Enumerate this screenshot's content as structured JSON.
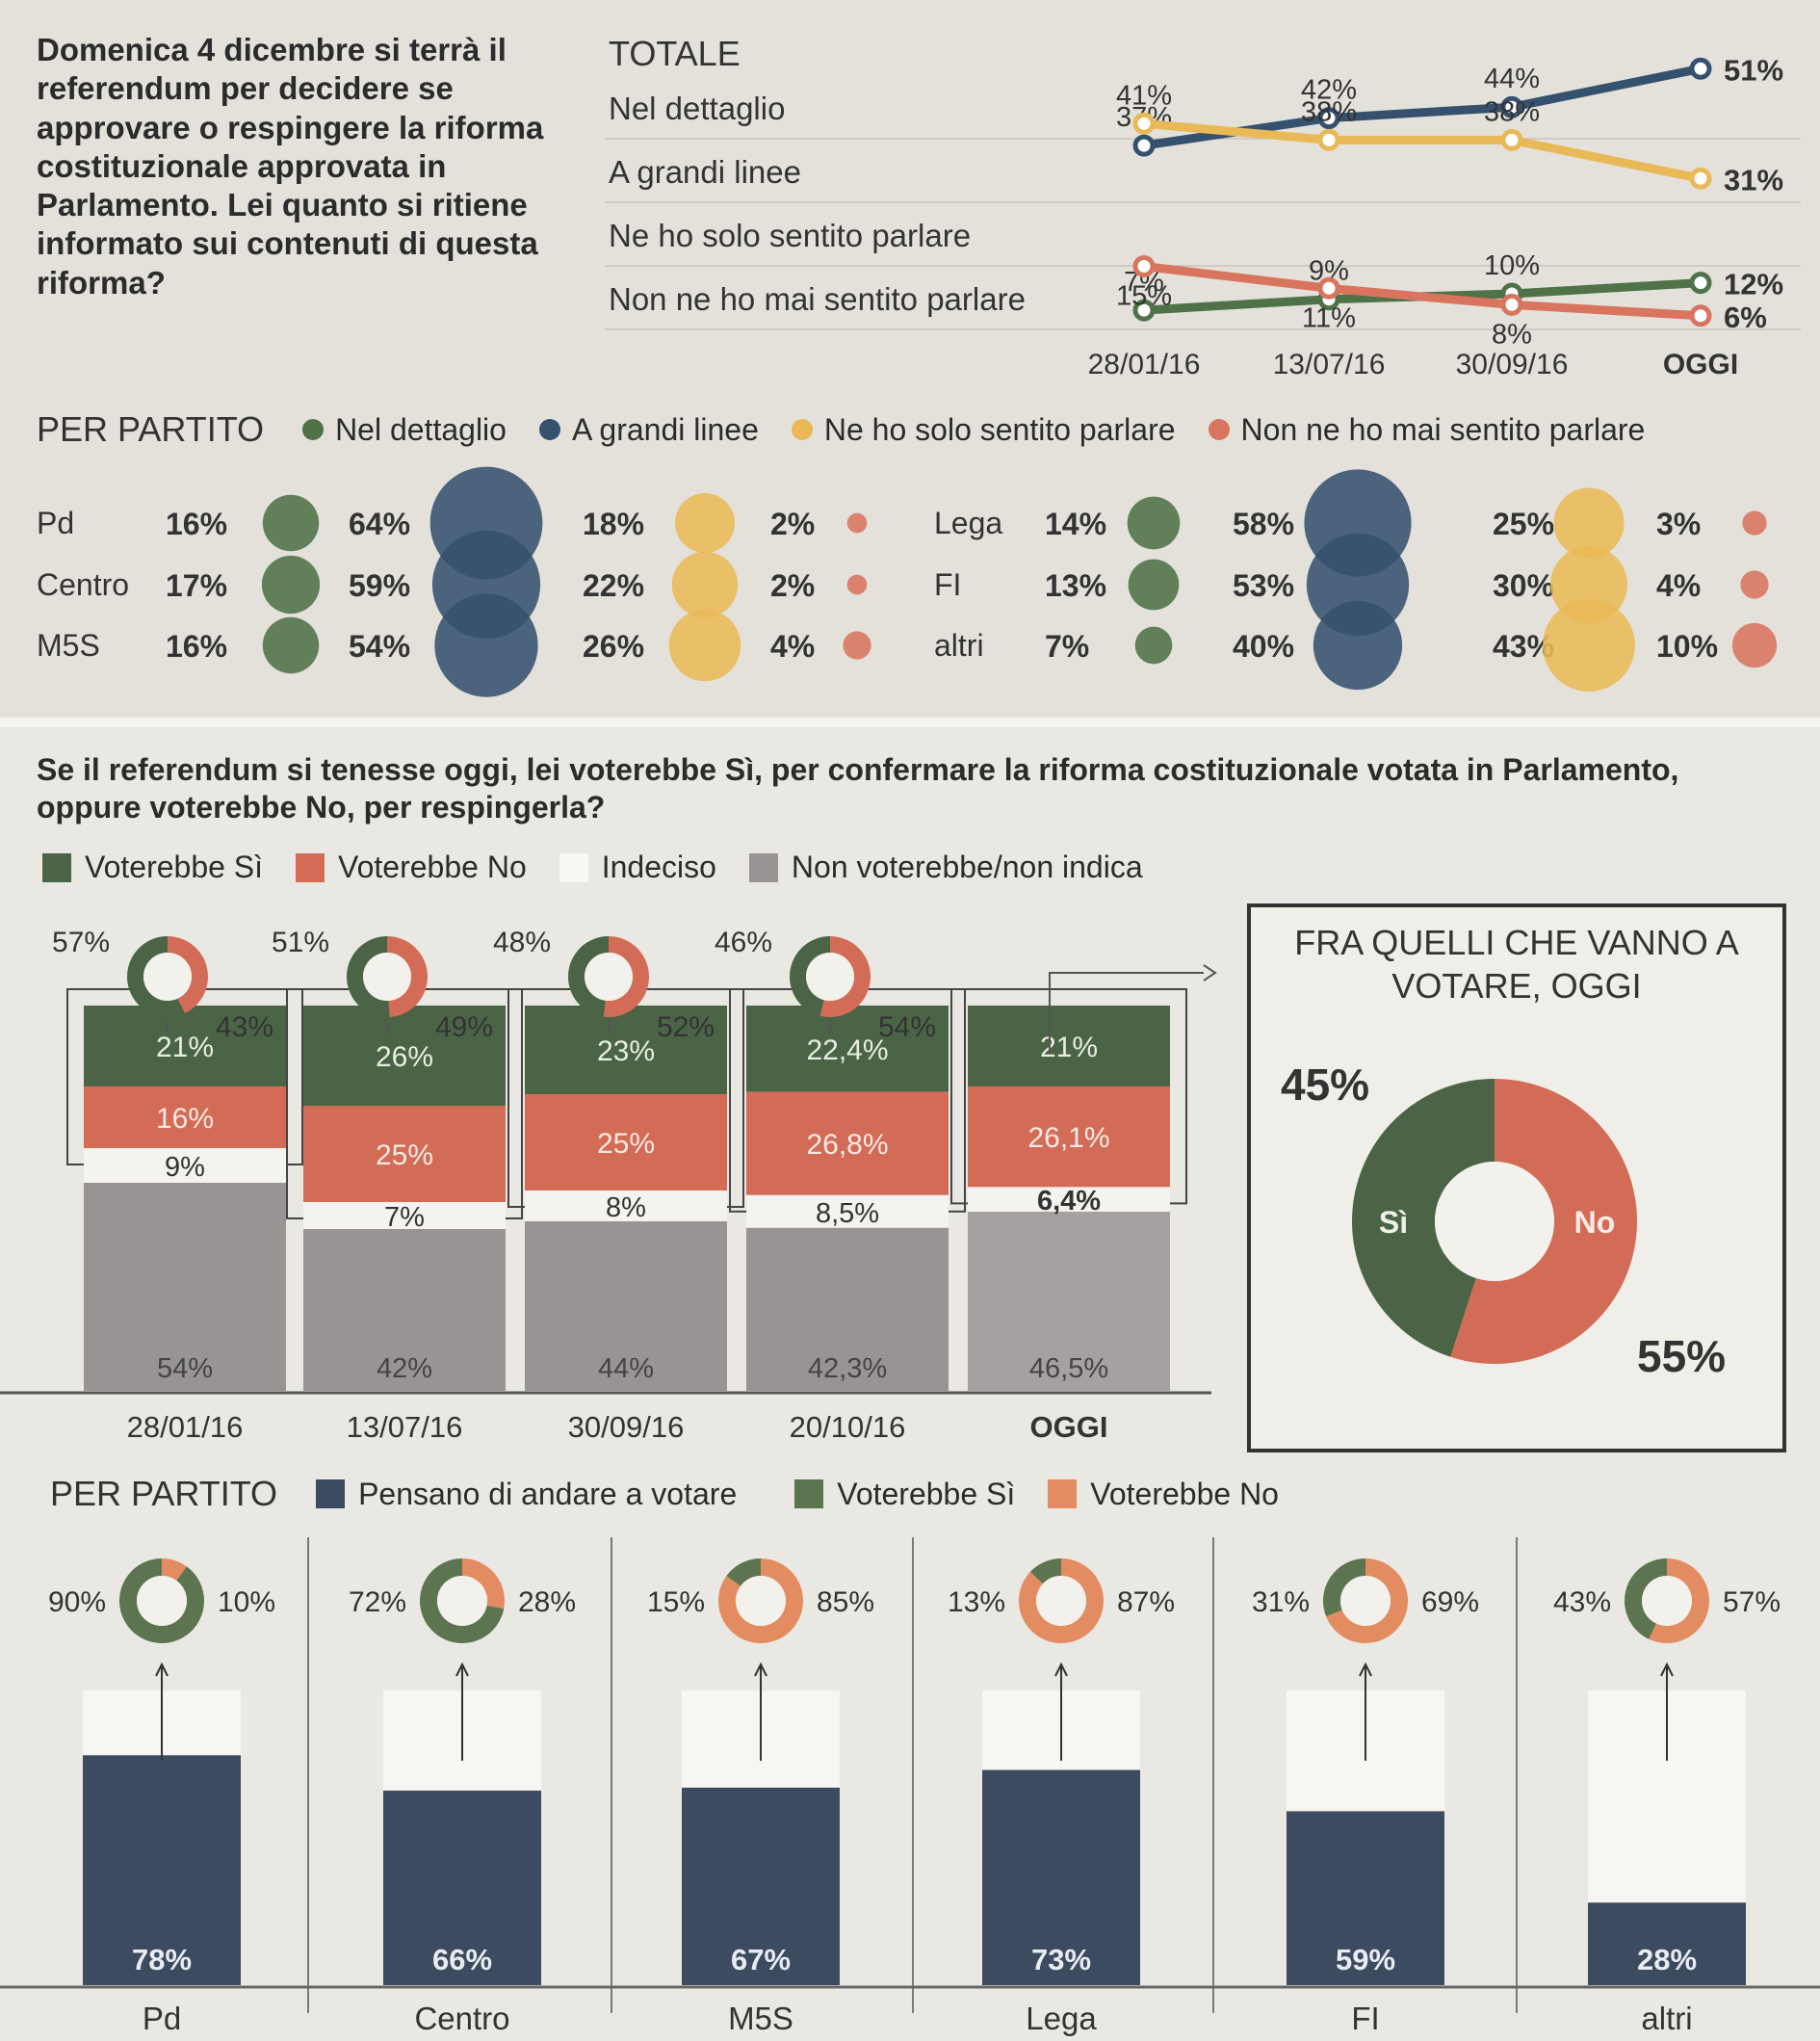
{
  "colors": {
    "detail": "#4f7248",
    "broad": "#35516e",
    "heard": "#e9b957",
    "never": "#d9745e",
    "yes": "#4b6446",
    "no": "#d36c57",
    "undecided": "#f4f3ef",
    "novote": "#999494",
    "turnout": "#3c4b60",
    "yes2": "#5c7550",
    "no2": "#e38c61"
  },
  "info": {
    "question": "Domenica 4 dicembre si terrà il referendum per decidere se approvare o respingere la riforma costituzionale approvata in Parlamento. Lei quanto si ritiene informato sui contenuti di questa riforma?",
    "totale_label": "TOTALE",
    "per_partito_label": "PER PARTITO",
    "legend": [
      "Nel dettaglio",
      "A grandi linee",
      "Ne ho solo sentito parlare",
      "Non ne ho mai sentito parlare"
    ]
  },
  "vote": {
    "question": "Se il referendum si tenesse oggi, lei voterebbe Sì, per confermare la riforma costituzionale votata in Parlamento, oppure voterebbe No, per respingerla?",
    "legend": [
      "Voterebbe Sì",
      "Voterebbe No",
      "Indeciso",
      "Non voterebbe/non indica"
    ],
    "subtotal_title": "FRA QUELLI CHE VANNO A VOTARE, OGGI",
    "party_title": "PER PARTITO",
    "party_legend": [
      "Pensano di andare a votare",
      "Voterebbe Sì",
      "Voterebbe No"
    ]
  },
  "chart_data": [
    {
      "type": "line",
      "title": "TOTALE",
      "x": [
        "28/01/16",
        "13/07/16",
        "30/09/16",
        "OGGI"
      ],
      "series": [
        {
          "name": "Nel dettaglio",
          "values": [
            7,
            9,
            10,
            12
          ],
          "labels": [
            "7%",
            "9%",
            "10%",
            "12%"
          ]
        },
        {
          "name": "A grandi linee",
          "values": [
            37,
            42,
            44,
            51
          ],
          "labels": [
            "37%",
            "42%",
            "44%",
            "51%"
          ]
        },
        {
          "name": "Ne ho solo sentito parlare",
          "values": [
            41,
            38,
            38,
            31
          ],
          "labels": [
            "41%",
            "38%",
            "38%",
            "31%"
          ]
        },
        {
          "name": "Non ne ho mai sentito parlare",
          "values": [
            15,
            11,
            8,
            6
          ],
          "labels": [
            "15%",
            "11%",
            "8%",
            "6%"
          ]
        }
      ]
    },
    {
      "type": "scatter",
      "title": "PER PARTITO",
      "series_names": [
        "Nel dettaglio",
        "A grandi linee",
        "Ne ho solo sentito parlare",
        "Non ne ho mai sentito parlare"
      ],
      "parties": [
        {
          "name": "Pd",
          "values": [
            16,
            64,
            18,
            2
          ],
          "labels": [
            "16%",
            "64%",
            "18%",
            "2%"
          ]
        },
        {
          "name": "Centro",
          "values": [
            17,
            59,
            22,
            2
          ],
          "labels": [
            "17%",
            "59%",
            "22%",
            "2%"
          ]
        },
        {
          "name": "M5S",
          "values": [
            16,
            54,
            26,
            4
          ],
          "labels": [
            "16%",
            "54%",
            "26%",
            "4%"
          ]
        },
        {
          "name": "Lega",
          "values": [
            14,
            58,
            25,
            3
          ],
          "labels": [
            "14%",
            "58%",
            "25%",
            "3%"
          ]
        },
        {
          "name": "FI",
          "values": [
            13,
            53,
            30,
            4
          ],
          "labels": [
            "13%",
            "53%",
            "30%",
            "4%"
          ]
        },
        {
          "name": "altri",
          "values": [
            7,
            40,
            43,
            10
          ],
          "labels": [
            "7%",
            "40%",
            "43%",
            "10%"
          ]
        }
      ]
    },
    {
      "type": "bar",
      "stacked": true,
      "categories": [
        "28/01/16",
        "13/07/16",
        "30/09/16",
        "20/10/16",
        "OGGI"
      ],
      "series": [
        {
          "name": "Voterebbe Sì",
          "values": [
            21,
            26,
            23,
            22.4,
            21
          ],
          "labels": [
            "21%",
            "26%",
            "23%",
            "22,4%",
            "21%"
          ]
        },
        {
          "name": "Voterebbe No",
          "values": [
            16,
            25,
            25,
            26.8,
            26.1
          ],
          "labels": [
            "16%",
            "25%",
            "25%",
            "26,8%",
            "26,1%"
          ]
        },
        {
          "name": "Indeciso",
          "values": [
            9,
            7,
            8,
            8.5,
            6.4
          ],
          "labels": [
            "9%",
            "7%",
            "8%",
            "8,5%",
            "6,4%"
          ]
        },
        {
          "name": "Non voterebbe/non indica",
          "values": [
            54,
            42,
            44,
            42.3,
            46.5
          ],
          "labels": [
            "54%",
            "42%",
            "44%",
            "42,3%",
            "46,5%"
          ]
        }
      ],
      "donuts": [
        {
          "yes": 57,
          "no": 43,
          "yes_label": "57%",
          "no_label": "43%"
        },
        {
          "yes": 51,
          "no": 49,
          "yes_label": "51%",
          "no_label": "49%"
        },
        {
          "yes": 48,
          "no": 52,
          "yes_label": "48%",
          "no_label": "52%"
        },
        {
          "yes": 46,
          "no": 54,
          "yes_label": "46%",
          "no_label": "54%"
        }
      ]
    },
    {
      "type": "pie",
      "title": "FRA QUELLI CHE VANNO A VOTARE, OGGI",
      "categories": [
        "Sì",
        "No"
      ],
      "values": [
        45,
        55
      ],
      "labels": [
        "45%",
        "55%"
      ]
    },
    {
      "type": "bar",
      "title": "PER PARTITO",
      "categories": [
        "Pd",
        "Centro",
        "M5S",
        "Lega",
        "FI",
        "altri"
      ],
      "turnout": [
        78,
        66,
        67,
        73,
        59,
        28
      ],
      "turnout_labels": [
        "78%",
        "66%",
        "67%",
        "73%",
        "59%",
        "28%"
      ],
      "yes": [
        90,
        72,
        15,
        13,
        31,
        43
      ],
      "no": [
        10,
        28,
        85,
        87,
        69,
        57
      ],
      "yes_labels": [
        "90%",
        "72%",
        "15%",
        "13%",
        "31%",
        "43%"
      ],
      "no_labels": [
        "10%",
        "28%",
        "85%",
        "87%",
        "69%",
        "57%"
      ]
    }
  ]
}
